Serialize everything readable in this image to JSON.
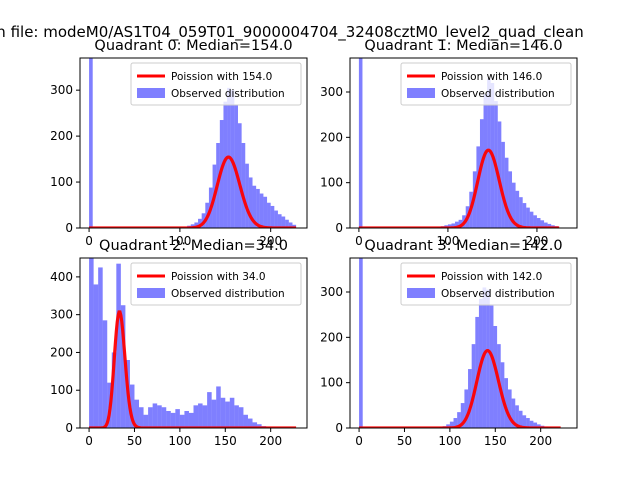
{
  "figure_title": "n file: modeM0/AS1T04_059T01_9000004704_32408cztM0_level2_quad_clean",
  "colors": {
    "hist": "#0000ff",
    "fit": "#ff0000",
    "axis": "#000000"
  },
  "chart_data": [
    {
      "type": "histogram",
      "title": "Quadrant 0: Median=154.0",
      "xlim": [
        -10,
        240
      ],
      "ylim": [
        0,
        370
      ],
      "xticks": [
        0,
        100,
        200
      ],
      "yticks": [
        0,
        100,
        200,
        300
      ],
      "legend": [
        "Poission with 154.0",
        "Observed distribution"
      ],
      "legend_loc": "upper right",
      "bins": [
        [
          0,
          4,
          370
        ],
        [
          108,
          112,
          5
        ],
        [
          112,
          116,
          8
        ],
        [
          116,
          120,
          12
        ],
        [
          120,
          124,
          20
        ],
        [
          124,
          128,
          32
        ],
        [
          128,
          132,
          55
        ],
        [
          132,
          136,
          88
        ],
        [
          136,
          140,
          138
        ],
        [
          140,
          144,
          185
        ],
        [
          144,
          148,
          235
        ],
        [
          148,
          152,
          275
        ],
        [
          152,
          156,
          305
        ],
        [
          156,
          160,
          300
        ],
        [
          160,
          164,
          268
        ],
        [
          164,
          168,
          228
        ],
        [
          168,
          172,
          185
        ],
        [
          172,
          176,
          140
        ],
        [
          176,
          180,
          110
        ],
        [
          180,
          184,
          92
        ],
        [
          184,
          188,
          85
        ],
        [
          188,
          192,
          75
        ],
        [
          192,
          196,
          68
        ],
        [
          196,
          200,
          55
        ],
        [
          200,
          204,
          48
        ],
        [
          204,
          208,
          38
        ],
        [
          208,
          212,
          30
        ],
        [
          212,
          216,
          25
        ],
        [
          216,
          220,
          18
        ],
        [
          220,
          224,
          12
        ],
        [
          224,
          228,
          7
        ]
      ],
      "fit": {
        "lambda": 154.0,
        "scale": 4800,
        "x_range": [
          0,
          228
        ]
      }
    },
    {
      "type": "histogram",
      "title": "Quadrant 1: Median=146.0",
      "xlim": [
        -10,
        245
      ],
      "ylim": [
        0,
        375
      ],
      "xticks": [
        0,
        100,
        200
      ],
      "yticks": [
        0,
        100,
        200,
        300
      ],
      "legend": [
        "Poission with 146.0",
        "Observed distribution"
      ],
      "legend_loc": "upper right",
      "bins": [
        [
          0,
          4,
          375
        ],
        [
          88,
          92,
          2
        ],
        [
          92,
          96,
          4
        ],
        [
          96,
          100,
          6
        ],
        [
          100,
          104,
          8
        ],
        [
          104,
          108,
          10
        ],
        [
          108,
          112,
          14
        ],
        [
          112,
          116,
          18
        ],
        [
          116,
          120,
          28
        ],
        [
          120,
          124,
          48
        ],
        [
          124,
          128,
          80
        ],
        [
          128,
          132,
          125
        ],
        [
          132,
          136,
          180
        ],
        [
          136,
          140,
          240
        ],
        [
          140,
          144,
          295
        ],
        [
          144,
          148,
          330
        ],
        [
          148,
          152,
          320
        ],
        [
          152,
          156,
          280
        ],
        [
          156,
          160,
          235
        ],
        [
          160,
          164,
          190
        ],
        [
          164,
          168,
          155
        ],
        [
          168,
          172,
          125
        ],
        [
          172,
          176,
          100
        ],
        [
          176,
          180,
          82
        ],
        [
          180,
          184,
          68
        ],
        [
          184,
          188,
          55
        ],
        [
          188,
          192,
          45
        ],
        [
          192,
          196,
          36
        ],
        [
          196,
          200,
          28
        ],
        [
          200,
          204,
          22
        ],
        [
          204,
          208,
          17
        ],
        [
          208,
          212,
          12
        ],
        [
          212,
          216,
          9
        ],
        [
          216,
          220,
          6
        ],
        [
          220,
          224,
          4
        ]
      ],
      "fit": {
        "lambda": 146.0,
        "scale": 5200,
        "x_range": [
          0,
          225
        ]
      }
    },
    {
      "type": "histogram",
      "title": "Quadrant 2: Median=34.0",
      "xlim": [
        -10,
        240
      ],
      "ylim": [
        0,
        450
      ],
      "xticks": [
        0,
        50,
        100,
        150,
        200
      ],
      "yticks": [
        0,
        100,
        200,
        300,
        400
      ],
      "legend": [
        "Poission with 34.0",
        "Observed distribution"
      ],
      "legend_loc": "upper right",
      "bins": [
        [
          0,
          5,
          450
        ],
        [
          5,
          10,
          380
        ],
        [
          10,
          15,
          425
        ],
        [
          15,
          20,
          285
        ],
        [
          20,
          25,
          120
        ],
        [
          25,
          30,
          200
        ],
        [
          30,
          35,
          435
        ],
        [
          35,
          40,
          325
        ],
        [
          40,
          45,
          180
        ],
        [
          45,
          50,
          115
        ],
        [
          50,
          55,
          75
        ],
        [
          55,
          60,
          55
        ],
        [
          60,
          65,
          35
        ],
        [
          65,
          70,
          55
        ],
        [
          70,
          75,
          65
        ],
        [
          75,
          80,
          60
        ],
        [
          80,
          85,
          55
        ],
        [
          85,
          90,
          45
        ],
        [
          90,
          95,
          40
        ],
        [
          95,
          100,
          50
        ],
        [
          100,
          105,
          35
        ],
        [
          105,
          110,
          45
        ],
        [
          110,
          115,
          40
        ],
        [
          115,
          120,
          60
        ],
        [
          120,
          125,
          65
        ],
        [
          125,
          130,
          60
        ],
        [
          130,
          135,
          95
        ],
        [
          135,
          140,
          75
        ],
        [
          140,
          145,
          110
        ],
        [
          145,
          150,
          80
        ],
        [
          150,
          155,
          70
        ],
        [
          155,
          160,
          80
        ],
        [
          160,
          165,
          60
        ],
        [
          165,
          170,
          55
        ],
        [
          170,
          175,
          35
        ],
        [
          175,
          180,
          25
        ],
        [
          180,
          185,
          15
        ],
        [
          185,
          190,
          10
        ],
        [
          190,
          195,
          5
        ],
        [
          195,
          200,
          3
        ]
      ],
      "fit": {
        "lambda": 34.0,
        "scale": 4500,
        "x_range": [
          0,
          228
        ]
      }
    },
    {
      "type": "histogram",
      "title": "Quadrant 3: Median=142.0",
      "xlim": [
        -10,
        240
      ],
      "ylim": [
        0,
        375
      ],
      "xticks": [
        0,
        50,
        100,
        150,
        200
      ],
      "yticks": [
        0,
        100,
        200,
        300
      ],
      "legend": [
        "Poission with 142.0",
        "Observed distribution"
      ],
      "legend_loc": "upper right",
      "bins": [
        [
          0,
          4,
          375
        ],
        [
          88,
          92,
          2
        ],
        [
          92,
          96,
          4
        ],
        [
          96,
          100,
          8
        ],
        [
          100,
          104,
          14
        ],
        [
          104,
          108,
          22
        ],
        [
          108,
          112,
          35
        ],
        [
          112,
          116,
          55
        ],
        [
          116,
          120,
          85
        ],
        [
          120,
          124,
          130
        ],
        [
          124,
          128,
          185
        ],
        [
          128,
          132,
          245
        ],
        [
          132,
          136,
          285
        ],
        [
          136,
          140,
          310
        ],
        [
          140,
          144,
          305
        ],
        [
          144,
          148,
          270
        ],
        [
          148,
          152,
          225
        ],
        [
          152,
          156,
          185
        ],
        [
          156,
          160,
          145
        ],
        [
          160,
          164,
          110
        ],
        [
          164,
          168,
          85
        ],
        [
          168,
          172,
          65
        ],
        [
          172,
          176,
          50
        ],
        [
          176,
          180,
          38
        ],
        [
          180,
          184,
          28
        ],
        [
          184,
          188,
          22
        ],
        [
          188,
          192,
          16
        ],
        [
          192,
          196,
          12
        ],
        [
          196,
          200,
          8
        ],
        [
          200,
          204,
          5
        ],
        [
          204,
          208,
          3
        ],
        [
          208,
          212,
          2
        ],
        [
          212,
          216,
          1
        ]
      ],
      "fit": {
        "lambda": 142.0,
        "scale": 5100,
        "x_range": [
          0,
          222
        ]
      }
    }
  ]
}
